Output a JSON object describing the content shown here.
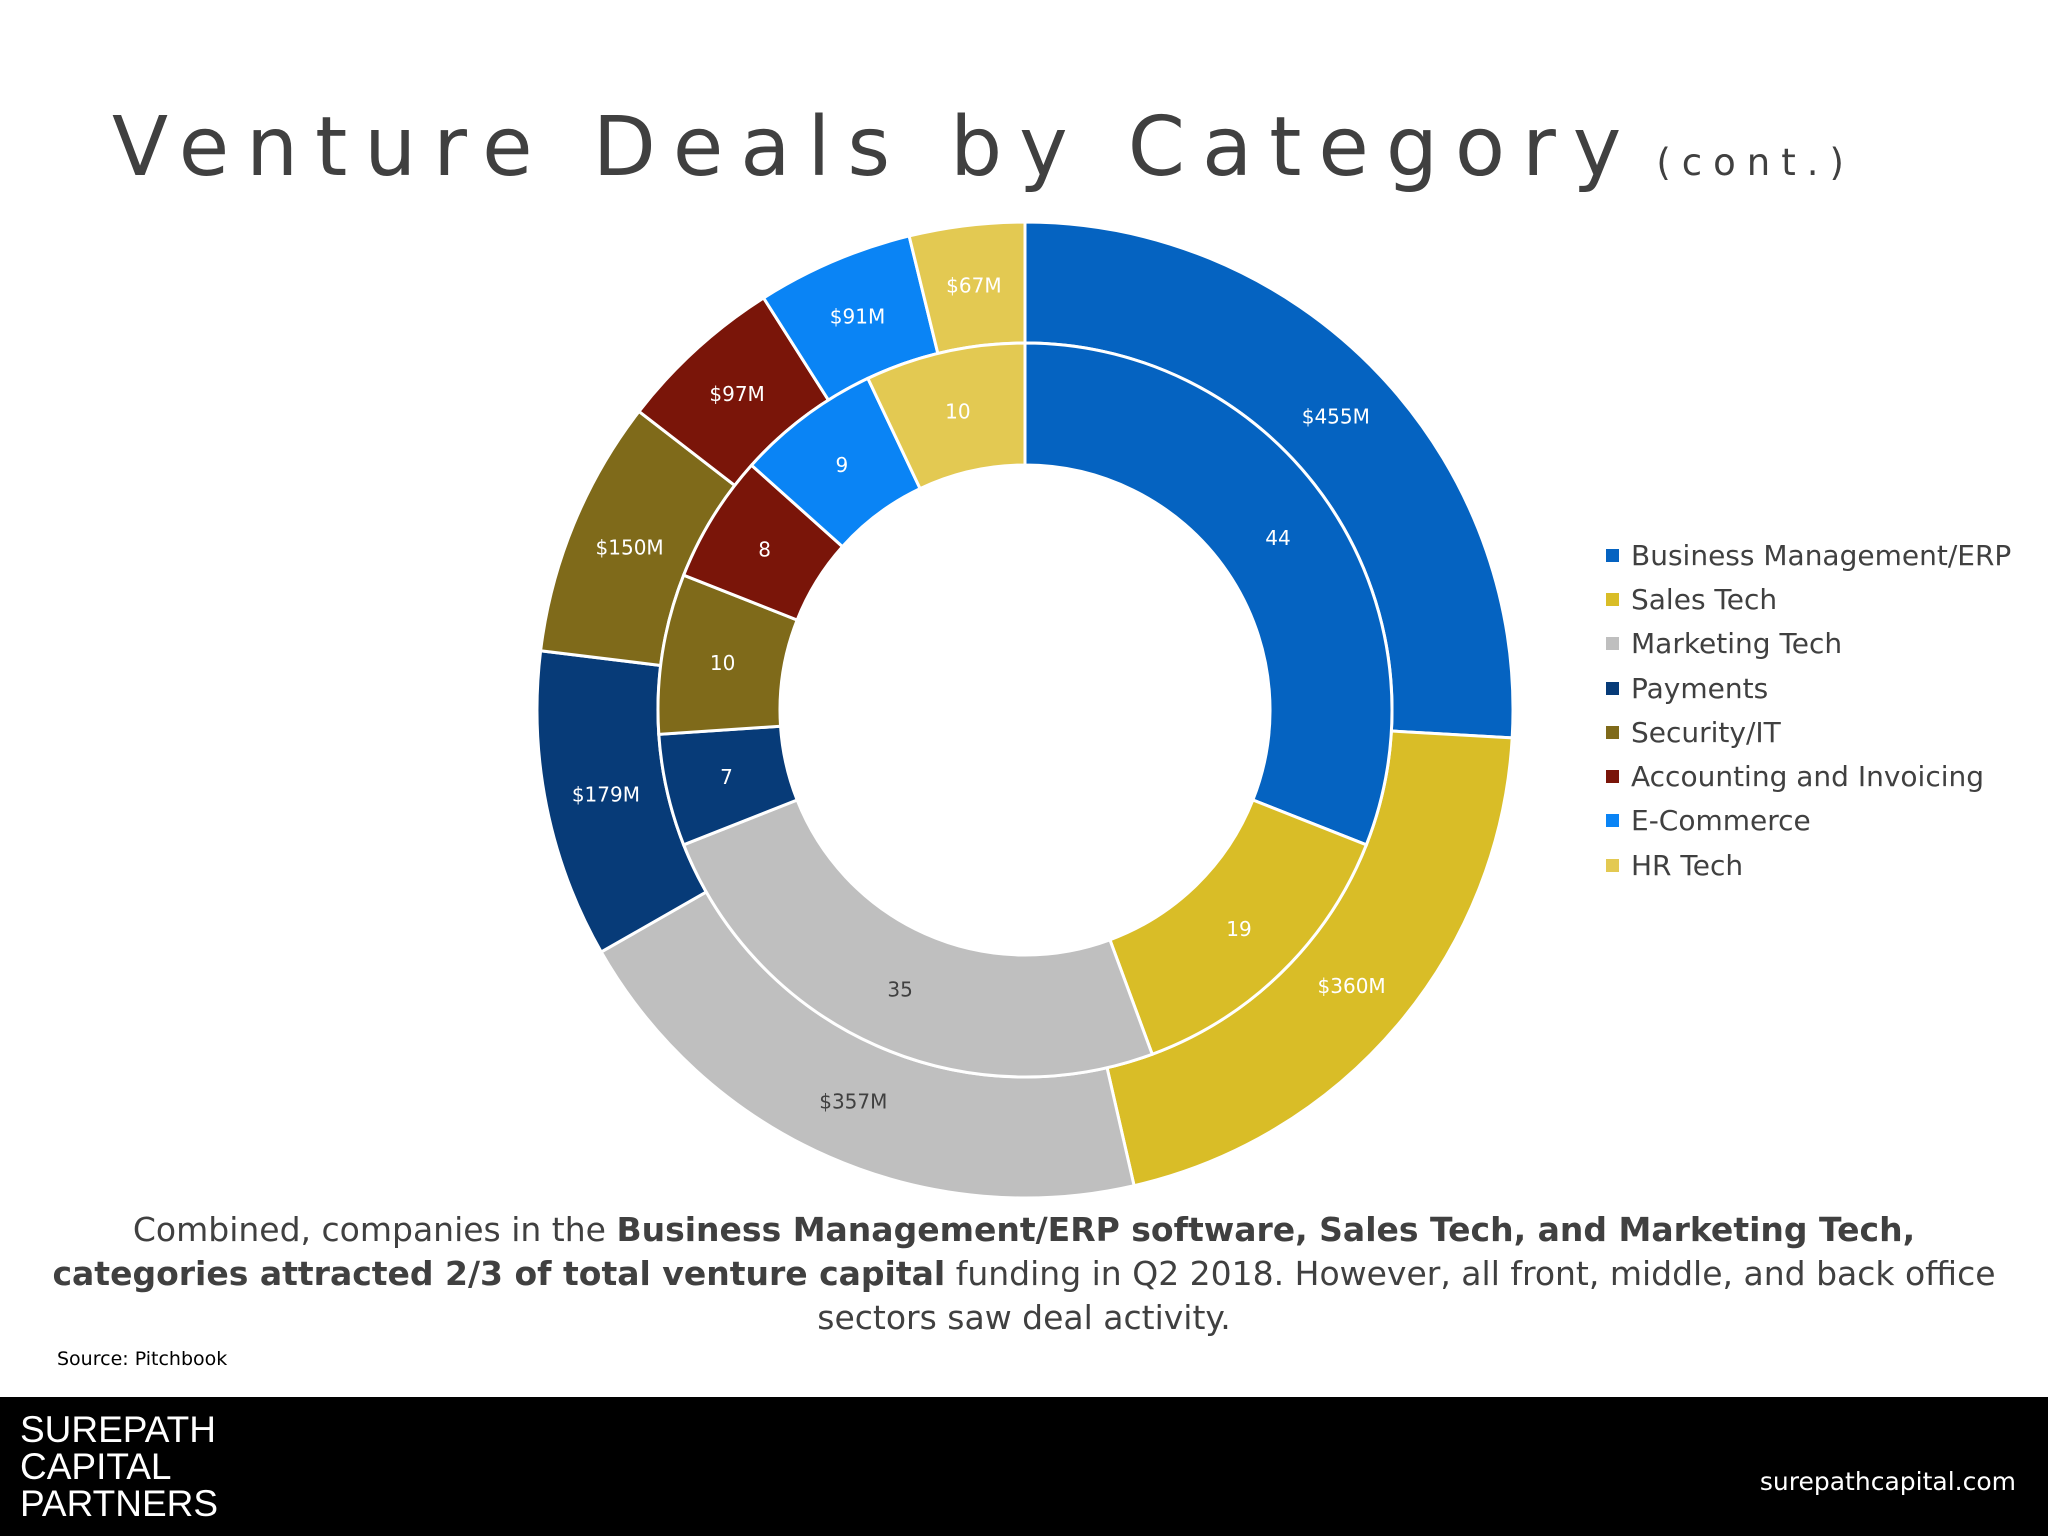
{
  "title": "Venture Deals by Category",
  "title_suffix": "(cont.)",
  "chart_data": {
    "type": "pie",
    "subtype": "double-donut",
    "categories": [
      "Business Management/ERP",
      "Sales Tech",
      "Marketing Tech",
      "Payments",
      "Security/IT",
      "Accounting and Invoicing",
      "E-Commerce",
      "HR Tech"
    ],
    "colors": [
      "#0563C1",
      "#D9BD27",
      "#BFBFBF",
      "#073B78",
      "#7F6A1A",
      "#7A1509",
      "#0A84F5",
      "#E3C952"
    ],
    "series": [
      {
        "ring": "inner",
        "values": [
          44,
          19,
          35,
          7,
          10,
          8,
          9,
          10
        ],
        "labels": [
          "44",
          "19",
          "35",
          "7",
          "10",
          "8",
          "9",
          "10"
        ]
      },
      {
        "ring": "outer",
        "values": [
          455,
          360,
          357,
          179,
          150,
          97,
          91,
          67
        ],
        "labels": [
          "$455M",
          "$360M",
          "$357M",
          "$179M",
          "$150M",
          "$97M",
          "$91M",
          "$67M"
        ]
      }
    ],
    "legend_position": "right"
  },
  "caption": {
    "part1": "Combined, companies in the ",
    "bold": "Business Management/ERP software, Sales Tech, and Marketing Tech, categories attracted 2/3 of total venture capital",
    "part2": " funding in Q2 2018. However, all front, middle, and back office sectors saw deal activity."
  },
  "source": "Source: Pitchbook",
  "footer": {
    "logo_lines": [
      "SUREPATH",
      "CAPITAL",
      "PARTNERS"
    ],
    "url": "surepathcapital.com"
  }
}
